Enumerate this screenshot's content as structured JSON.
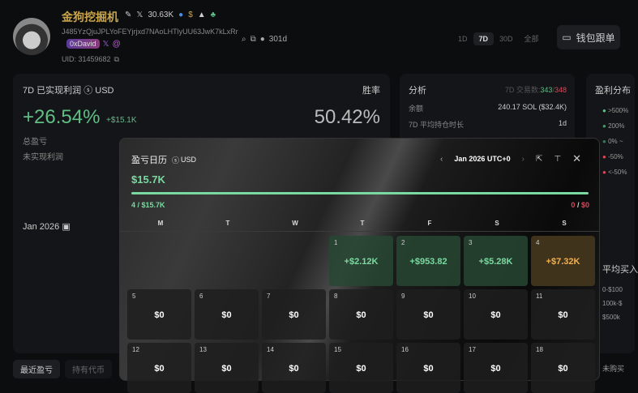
{
  "profile": {
    "name": "金狗挖掘机",
    "followers": "30.63K",
    "address": "J485YzQjuJPLYoFEYjrjxd7NAoLHTlyUU63JwK7kLxRr",
    "tag": "0xDavid",
    "uid": "UID: 31459682",
    "age": "301d"
  },
  "range_tabs": [
    "1D",
    "7D",
    "30D",
    "全部"
  ],
  "active_tab": "7D",
  "wallet_button": "钱包跟单",
  "pnl": {
    "title": "7D 已实现利润",
    "currency": "USD",
    "pct": "+26.54%",
    "usd": "+$15.1K",
    "winrate_label": "胜率",
    "winrate": "50.42%",
    "total_label": "总盈亏",
    "unrealized_label": "未实现利润",
    "month": "Jan 2026"
  },
  "analysis": {
    "title": "分析",
    "trades_label": "7D 交易数:",
    "trades_win": "343",
    "trades_loss": "348",
    "balance_label": "余额",
    "balance": "240.17 SOL ($32.4K)",
    "hold_label": "7D 平均持仓时长",
    "hold": "1d"
  },
  "distribution": {
    "title": "盈利分布",
    "items": [
      ">500%",
      "200%",
      "0% ~",
      "-50%",
      "<-50%"
    ],
    "colors": [
      "#5fbf85",
      "#4a9a6a",
      "#3a7a55",
      "#e0445a",
      "#e0445a"
    ],
    "avg_buy_title": "平均买入",
    "avg_buy": [
      "0-$100",
      "100k-$",
      "$500k"
    ],
    "unbought": "未购买"
  },
  "bottom_tabs": [
    "最近盈亏",
    "持有代币"
  ],
  "calendar": {
    "title": "盈亏日历",
    "currency": "USD",
    "month": "Jan 2026 UTC+0",
    "total": "$15.7K",
    "win_count": "4",
    "win_total": "$15.7K",
    "loss_count": "0",
    "loss_total": "$0",
    "win_fraction": 1.0,
    "weekdays": [
      "M",
      "T",
      "W",
      "T",
      "F",
      "S",
      "S"
    ],
    "days": [
      {
        "d": "1",
        "v": "+$2.12K",
        "t": "g"
      },
      {
        "d": "2",
        "v": "+$953.82",
        "t": "g"
      },
      {
        "d": "3",
        "v": "+$5.28K",
        "t": "g"
      },
      {
        "d": "4",
        "v": "+$7.32K",
        "t": "o"
      },
      {
        "d": "5",
        "v": "$0"
      },
      {
        "d": "6",
        "v": "$0"
      },
      {
        "d": "7",
        "v": "$0"
      },
      {
        "d": "8",
        "v": "$0"
      },
      {
        "d": "9",
        "v": "$0"
      },
      {
        "d": "10",
        "v": "$0"
      },
      {
        "d": "11",
        "v": "$0"
      },
      {
        "d": "12",
        "v": "$0"
      },
      {
        "d": "13",
        "v": "$0"
      },
      {
        "d": "14",
        "v": "$0"
      },
      {
        "d": "15",
        "v": "$0"
      },
      {
        "d": "16",
        "v": "$0"
      },
      {
        "d": "17",
        "v": "$0"
      },
      {
        "d": "18",
        "v": "$0"
      }
    ]
  }
}
